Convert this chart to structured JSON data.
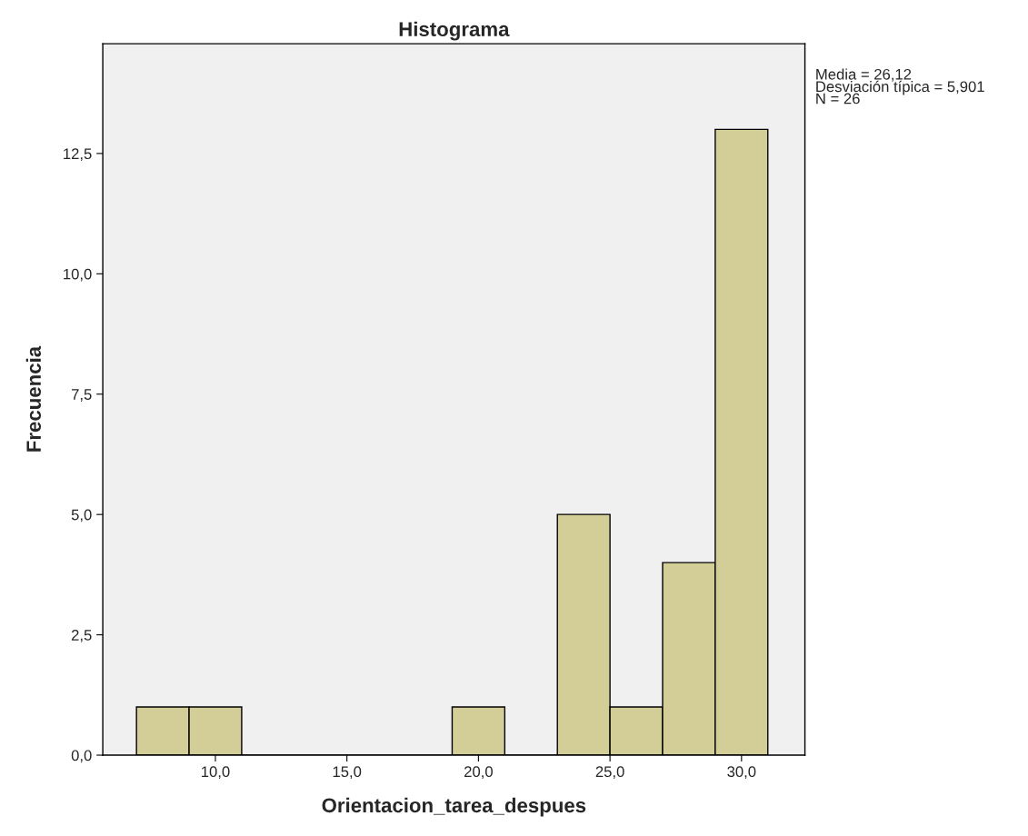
{
  "chart_data": {
    "type": "histogram",
    "title": "Histograma",
    "xlabel": "Orientacion_tarea_despues",
    "ylabel": "Frecuencia",
    "bins": [
      7,
      9,
      11,
      13,
      15,
      17,
      19,
      21,
      23,
      25,
      27,
      29,
      31
    ],
    "values": [
      1,
      1,
      0,
      0,
      0,
      0,
      1,
      0,
      5,
      1,
      4,
      13
    ],
    "color": "#d3ce97",
    "xlim": [
      5.72,
      32.41
    ],
    "xticks": [
      {
        "value": 10,
        "label": "10,0"
      },
      {
        "value": 15,
        "label": "15,0"
      },
      {
        "value": 20,
        "label": "20,0"
      },
      {
        "value": 25,
        "label": "25,0"
      },
      {
        "value": 30,
        "label": "30,0"
      }
    ],
    "ylim": [
      0,
      14.78
    ],
    "yticks": [
      {
        "value": 0,
        "label": "0,0"
      },
      {
        "value": 2.5,
        "label": "2,5"
      },
      {
        "value": 5,
        "label": "5,0"
      },
      {
        "value": 7.5,
        "label": "7,5"
      },
      {
        "value": 10,
        "label": "10,0"
      },
      {
        "value": 12.5,
        "label": "12,5"
      }
    ],
    "annotations": [
      "Media = 26,12",
      "Desviación típica = 5,901",
      "N = 26"
    ],
    "grid": false,
    "legend": false
  }
}
